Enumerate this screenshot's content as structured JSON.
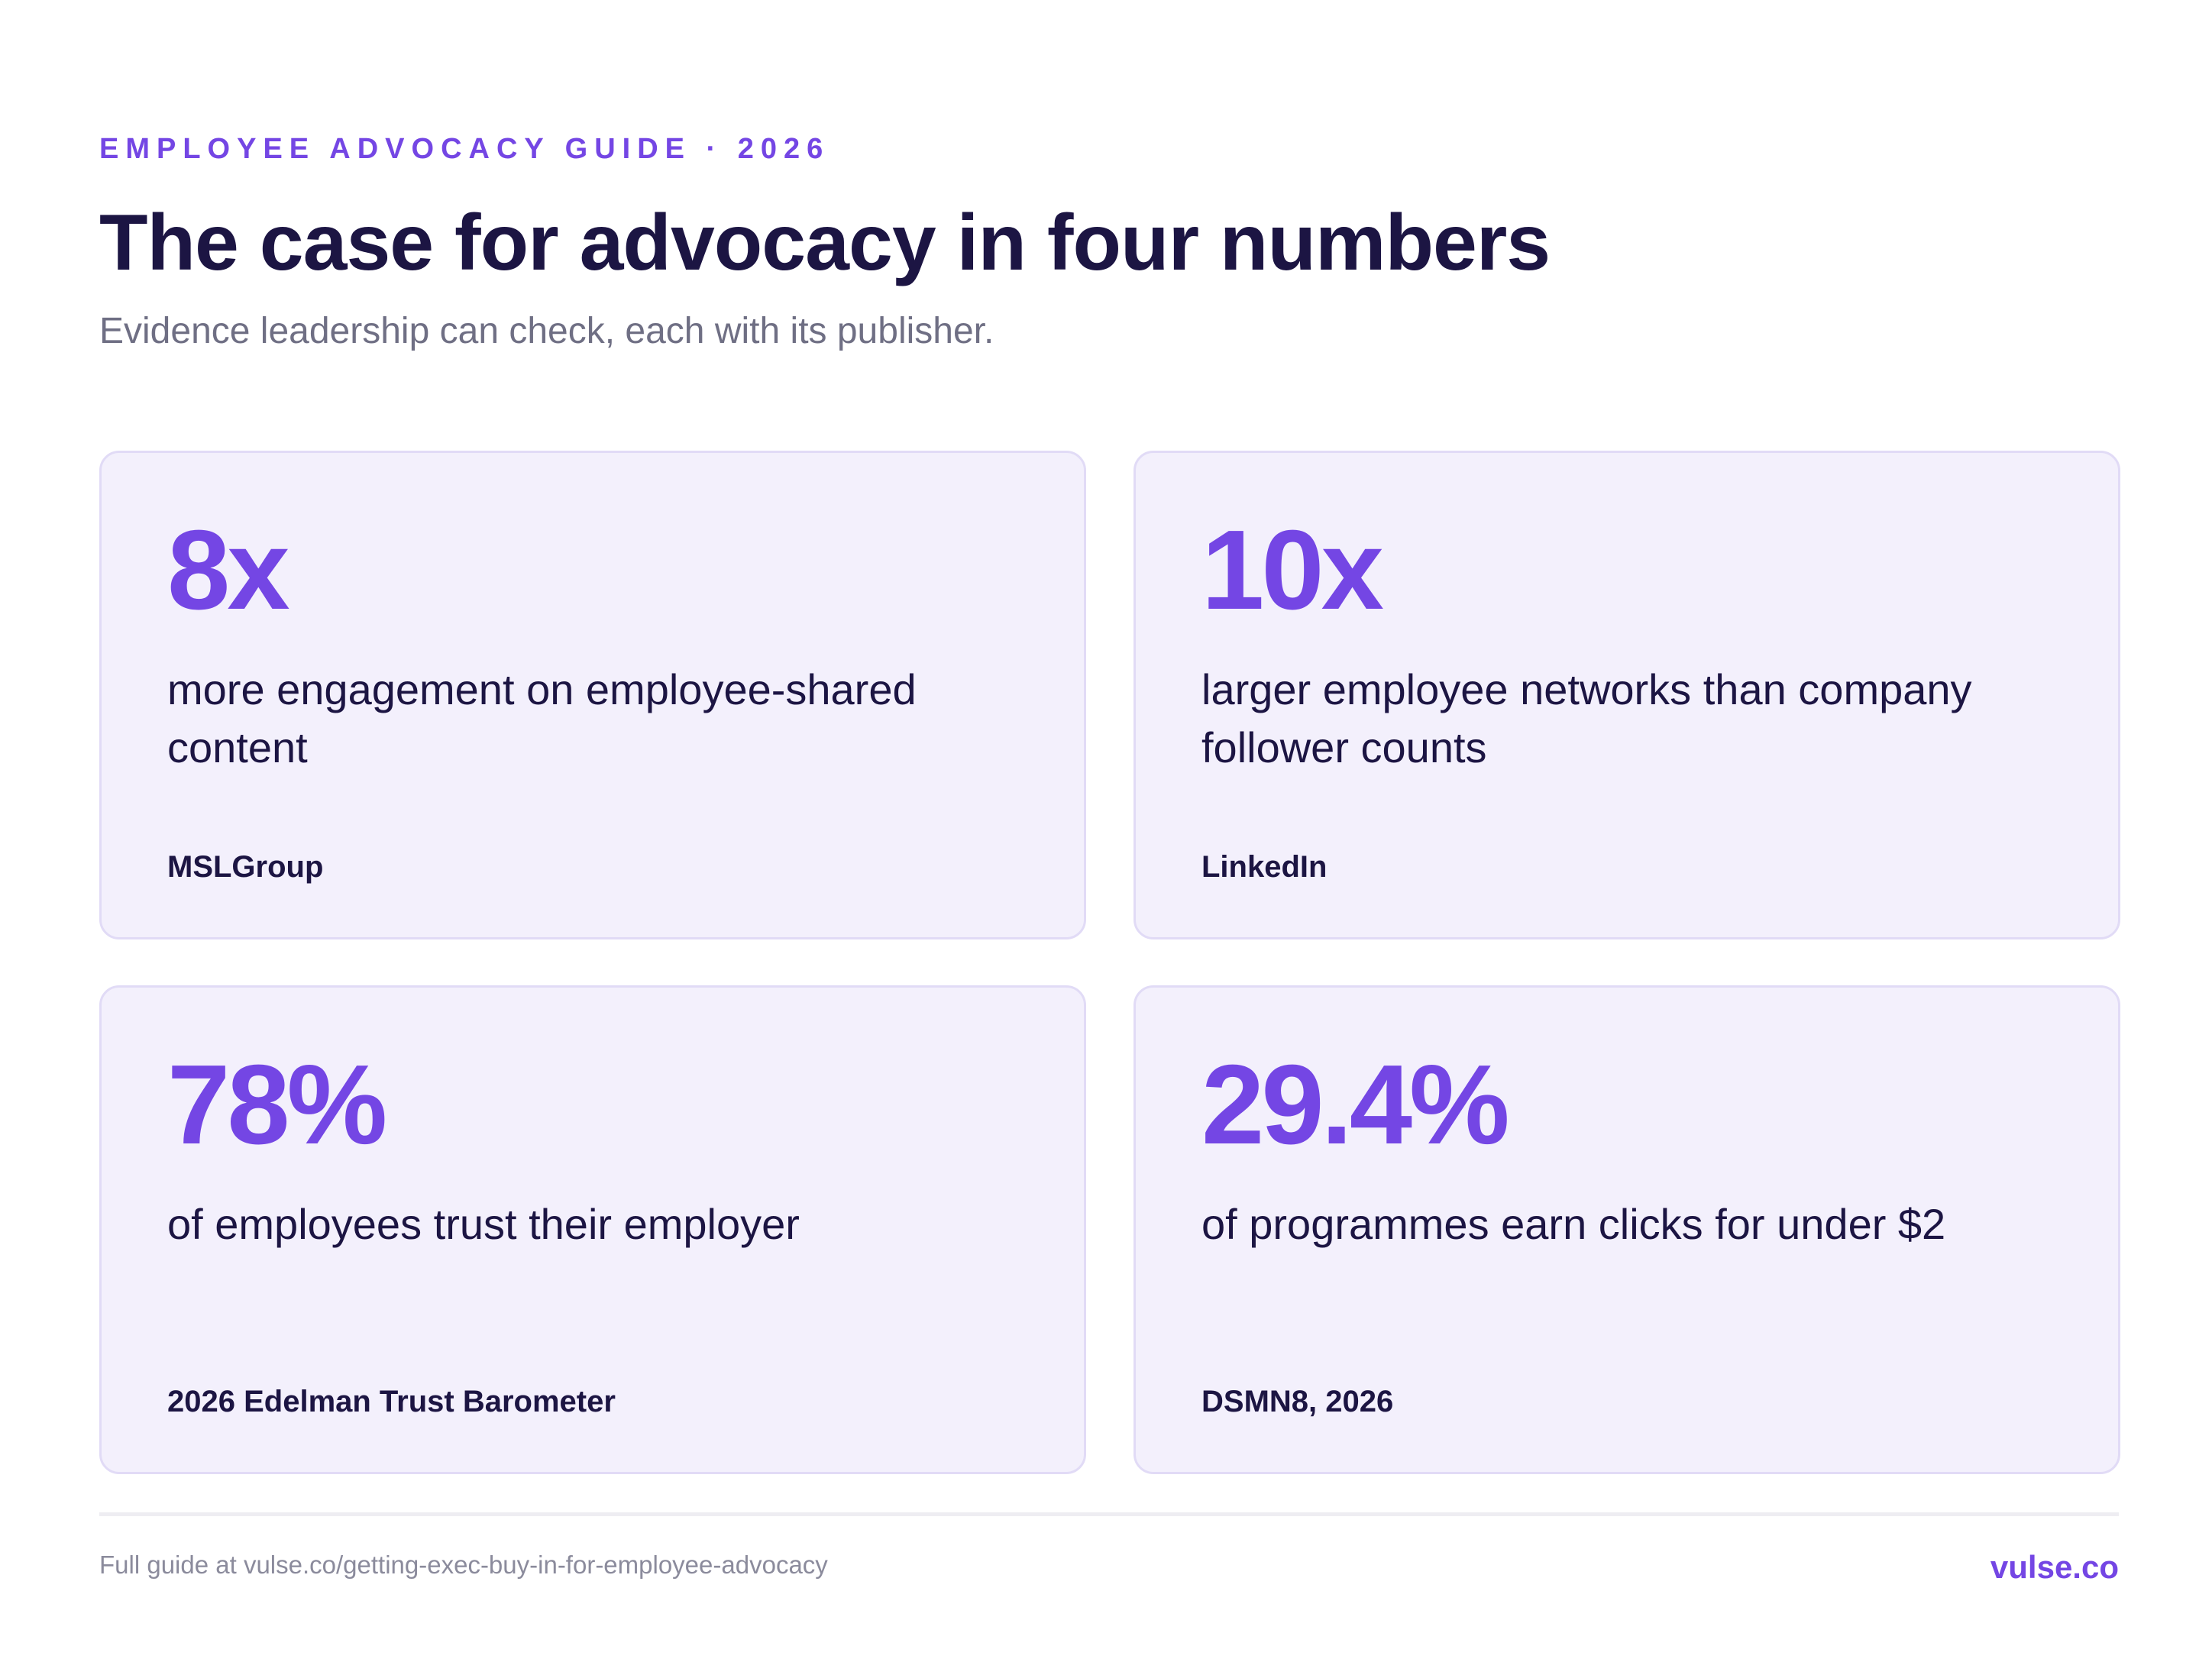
{
  "header": {
    "eyebrow": "EMPLOYEE ADVOCACY GUIDE · 2026",
    "title": "The case for advocacy in four numbers",
    "subtitle": "Evidence leadership can check, each with its publisher."
  },
  "cards": [
    {
      "stat": "8x",
      "description": "more engagement on employee-shared content",
      "source": "MSLGroup"
    },
    {
      "stat": "10x",
      "description": "larger employee networks than company follower counts",
      "source": "LinkedIn"
    },
    {
      "stat": "78%",
      "description": "of employees trust their employer",
      "source": "2026 Edelman Trust Barometer"
    },
    {
      "stat": "29.4%",
      "description": "of programmes earn clicks for under $2",
      "source": "DSMN8, 2026"
    }
  ],
  "footer": {
    "guide_link": "Full guide at vulse.co/getting-exec-buy-in-for-employee-advocacy",
    "brand": "vulse.co"
  },
  "colors": {
    "accent": "#7446e4",
    "heading": "#1c1543",
    "muted": "#6f6f84",
    "card_background": "#f3f0fc",
    "card_border": "#e1dbf6"
  }
}
